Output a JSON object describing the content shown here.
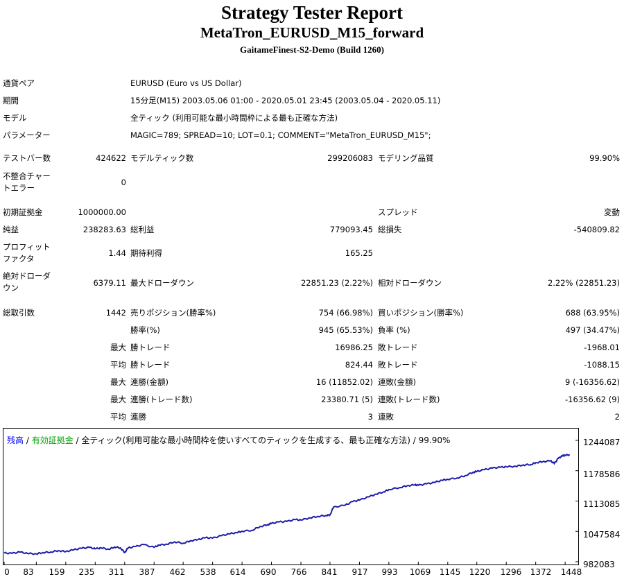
{
  "header": {
    "title": "Strategy Tester Report",
    "subtitle": "MetaTron_EURUSD_M15_forward",
    "server": "GaitameFinest-S2-Demo (Build 1260)"
  },
  "info": {
    "symbol_label": "通貨ペア",
    "symbol_value": "EURUSD (Euro vs US Dollar)",
    "period_label": "期間",
    "period_value": "15分足(M15) 2003.05.06 01:00 - 2020.05.01 23:45 (2003.05.04 - 2020.05.11)",
    "model_label": "モデル",
    "model_value": "全ティック (利用可能な最小時間枠による最も正確な方法)",
    "params_label": "パラメーター",
    "params_value": "MAGIC=789; SPREAD=10; LOT=0.1; COMMENT=\"MetaTron_EURUSD_M15\";"
  },
  "stats": {
    "bars_label": "テストバー数",
    "bars_value": "424622",
    "ticks_label": "モデルティック数",
    "ticks_value": "299206083",
    "quality_label": "モデリング品質",
    "quality_value": "99.90%",
    "mismatch_label": "不整合チャートエラー",
    "mismatch_value": "0",
    "deposit_label": "初期証拠金",
    "deposit_value": "1000000.00",
    "spread_label": "スプレッド",
    "spread_value": "変動",
    "net_label": "純益",
    "net_value": "238283.63",
    "gross_profit_label": "総利益",
    "gross_profit_value": "779093.45",
    "gross_loss_label": "総損失",
    "gross_loss_value": "-540809.82",
    "pf_label": "プロフィットファクタ",
    "pf_value": "1.44",
    "payoff_label": "期待利得",
    "payoff_value": "165.25",
    "abs_dd_label": "絶対ドローダウン",
    "abs_dd_value": "6379.11",
    "max_dd_label": "最大ドローダウン",
    "max_dd_value": "22851.23 (2.22%)",
    "rel_dd_label": "相対ドローダウン",
    "rel_dd_value": "2.22% (22851.23)",
    "total_trades_label": "総取引数",
    "total_trades_value": "1442",
    "short_label": "売りポジション(勝率%)",
    "short_value": "754 (66.98%)",
    "long_label": "買いポジション(勝率%)",
    "long_value": "688 (63.95%)",
    "win_pct_label": "勝率(%)",
    "win_pct_value": "945 (65.53%)",
    "loss_pct_label": "負率 (%)",
    "loss_pct_value": "497 (34.47%)",
    "largest_label": "最大",
    "largest_win_label": "勝トレード",
    "largest_win_value": "16986.25",
    "largest_loss_label": "敗トレード",
    "largest_loss_value": "-1968.01",
    "average_label": "平均",
    "average_win_label": "勝トレード",
    "average_win_value": "824.44",
    "average_loss_label": "敗トレード",
    "average_loss_value": "-1088.15",
    "max_cons_label": "最大",
    "max_cons_wins_label": "連勝(金額)",
    "max_cons_wins_value": "16 (11852.02)",
    "max_cons_losses_label": "連敗(金額)",
    "max_cons_losses_value": "9 (-16356.62)",
    "max_consec_label": "最大",
    "max_consec_profit_label": "連勝(トレード数)",
    "max_consec_profit_value": "23380.71 (5)",
    "max_consec_loss_label": "連敗(トレード数)",
    "max_consec_loss_value": "-16356.62 (9)",
    "avg_cons_label": "平均",
    "avg_cons_wins_label": "連勝",
    "avg_cons_wins_value": "3",
    "avg_cons_losses_label": "連敗",
    "avg_cons_losses_value": "2"
  },
  "chart_legend": {
    "balance": "残高",
    "equity": "有効証拠金",
    "sep1": " / ",
    "sep2": " / ",
    "model": "全ティック(利用可能な最小時間枠を使いすべてのティックを生成する、最も正確な方法)",
    "sep3": " / ",
    "quality": "99.90%"
  },
  "chart_data": {
    "type": "line",
    "title": "",
    "xlabel": "",
    "ylabel": "",
    "xlim": [
      0,
      1480
    ],
    "ylim": [
      982083,
      1265000
    ],
    "x_ticks": [
      "0",
      "83",
      "159",
      "235",
      "311",
      "387",
      "462",
      "538",
      "614",
      "690",
      "766",
      "841",
      "917",
      "993",
      "1069",
      "1145",
      "1220",
      "1296",
      "1372",
      "1448"
    ],
    "y_ticks": [
      "1244087",
      "1178586",
      "1113085",
      "1047584",
      "982083"
    ],
    "line_color": "#1c1caa",
    "series": [
      {
        "x": [
          0,
          20,
          40,
          60,
          83,
          100,
          120,
          140,
          159,
          180,
          200,
          220,
          235,
          250,
          270,
          285,
          300,
          311,
          320,
          340,
          360,
          387,
          400,
          420,
          440,
          462,
          480,
          500,
          520,
          538,
          560,
          580,
          600,
          614,
          640,
          660,
          680,
          690,
          710,
          730,
          750,
          766,
          790,
          810,
          830,
          841,
          850,
          880,
          900,
          917,
          940,
          960,
          980,
          993,
          1020,
          1040,
          1060,
          1069,
          1090,
          1110,
          1130,
          1145,
          1170,
          1190,
          1210,
          1220,
          1240,
          1260,
          1280,
          1296,
          1320,
          1340,
          1360,
          1372,
          1390,
          1410,
          1420,
          1430,
          1440,
          1448,
          1460
        ],
        "y": [
          1001000,
          1000000,
          1003000,
          1000000,
          999000,
          1002000,
          1003000,
          1006000,
          1004000,
          1008000,
          1011000,
          1013000,
          1010000,
          1012000,
          1009000,
          1014000,
          1012000,
          1002000,
          1012000,
          1015000,
          1019000,
          1013000,
          1018000,
          1020000,
          1025000,
          1022000,
          1027000,
          1030000,
          1034000,
          1033000,
          1038000,
          1042000,
          1045000,
          1048000,
          1050000,
          1058000,
          1062000,
          1065000,
          1068000,
          1069000,
          1073000,
          1072000,
          1077000,
          1080000,
          1082000,
          1083000,
          1100000,
          1104000,
          1112000,
          1115000,
          1122000,
          1128000,
          1133000,
          1138000,
          1142000,
          1146000,
          1148000,
          1147000,
          1150000,
          1153000,
          1158000,
          1160000,
          1163000,
          1168000,
          1175000,
          1177000,
          1181000,
          1184000,
          1186000,
          1187000,
          1188000,
          1191000,
          1192000,
          1196000,
          1198000,
          1200000,
          1194000,
          1205000,
          1210000,
          1212000,
          1213000
        ]
      }
    ]
  }
}
